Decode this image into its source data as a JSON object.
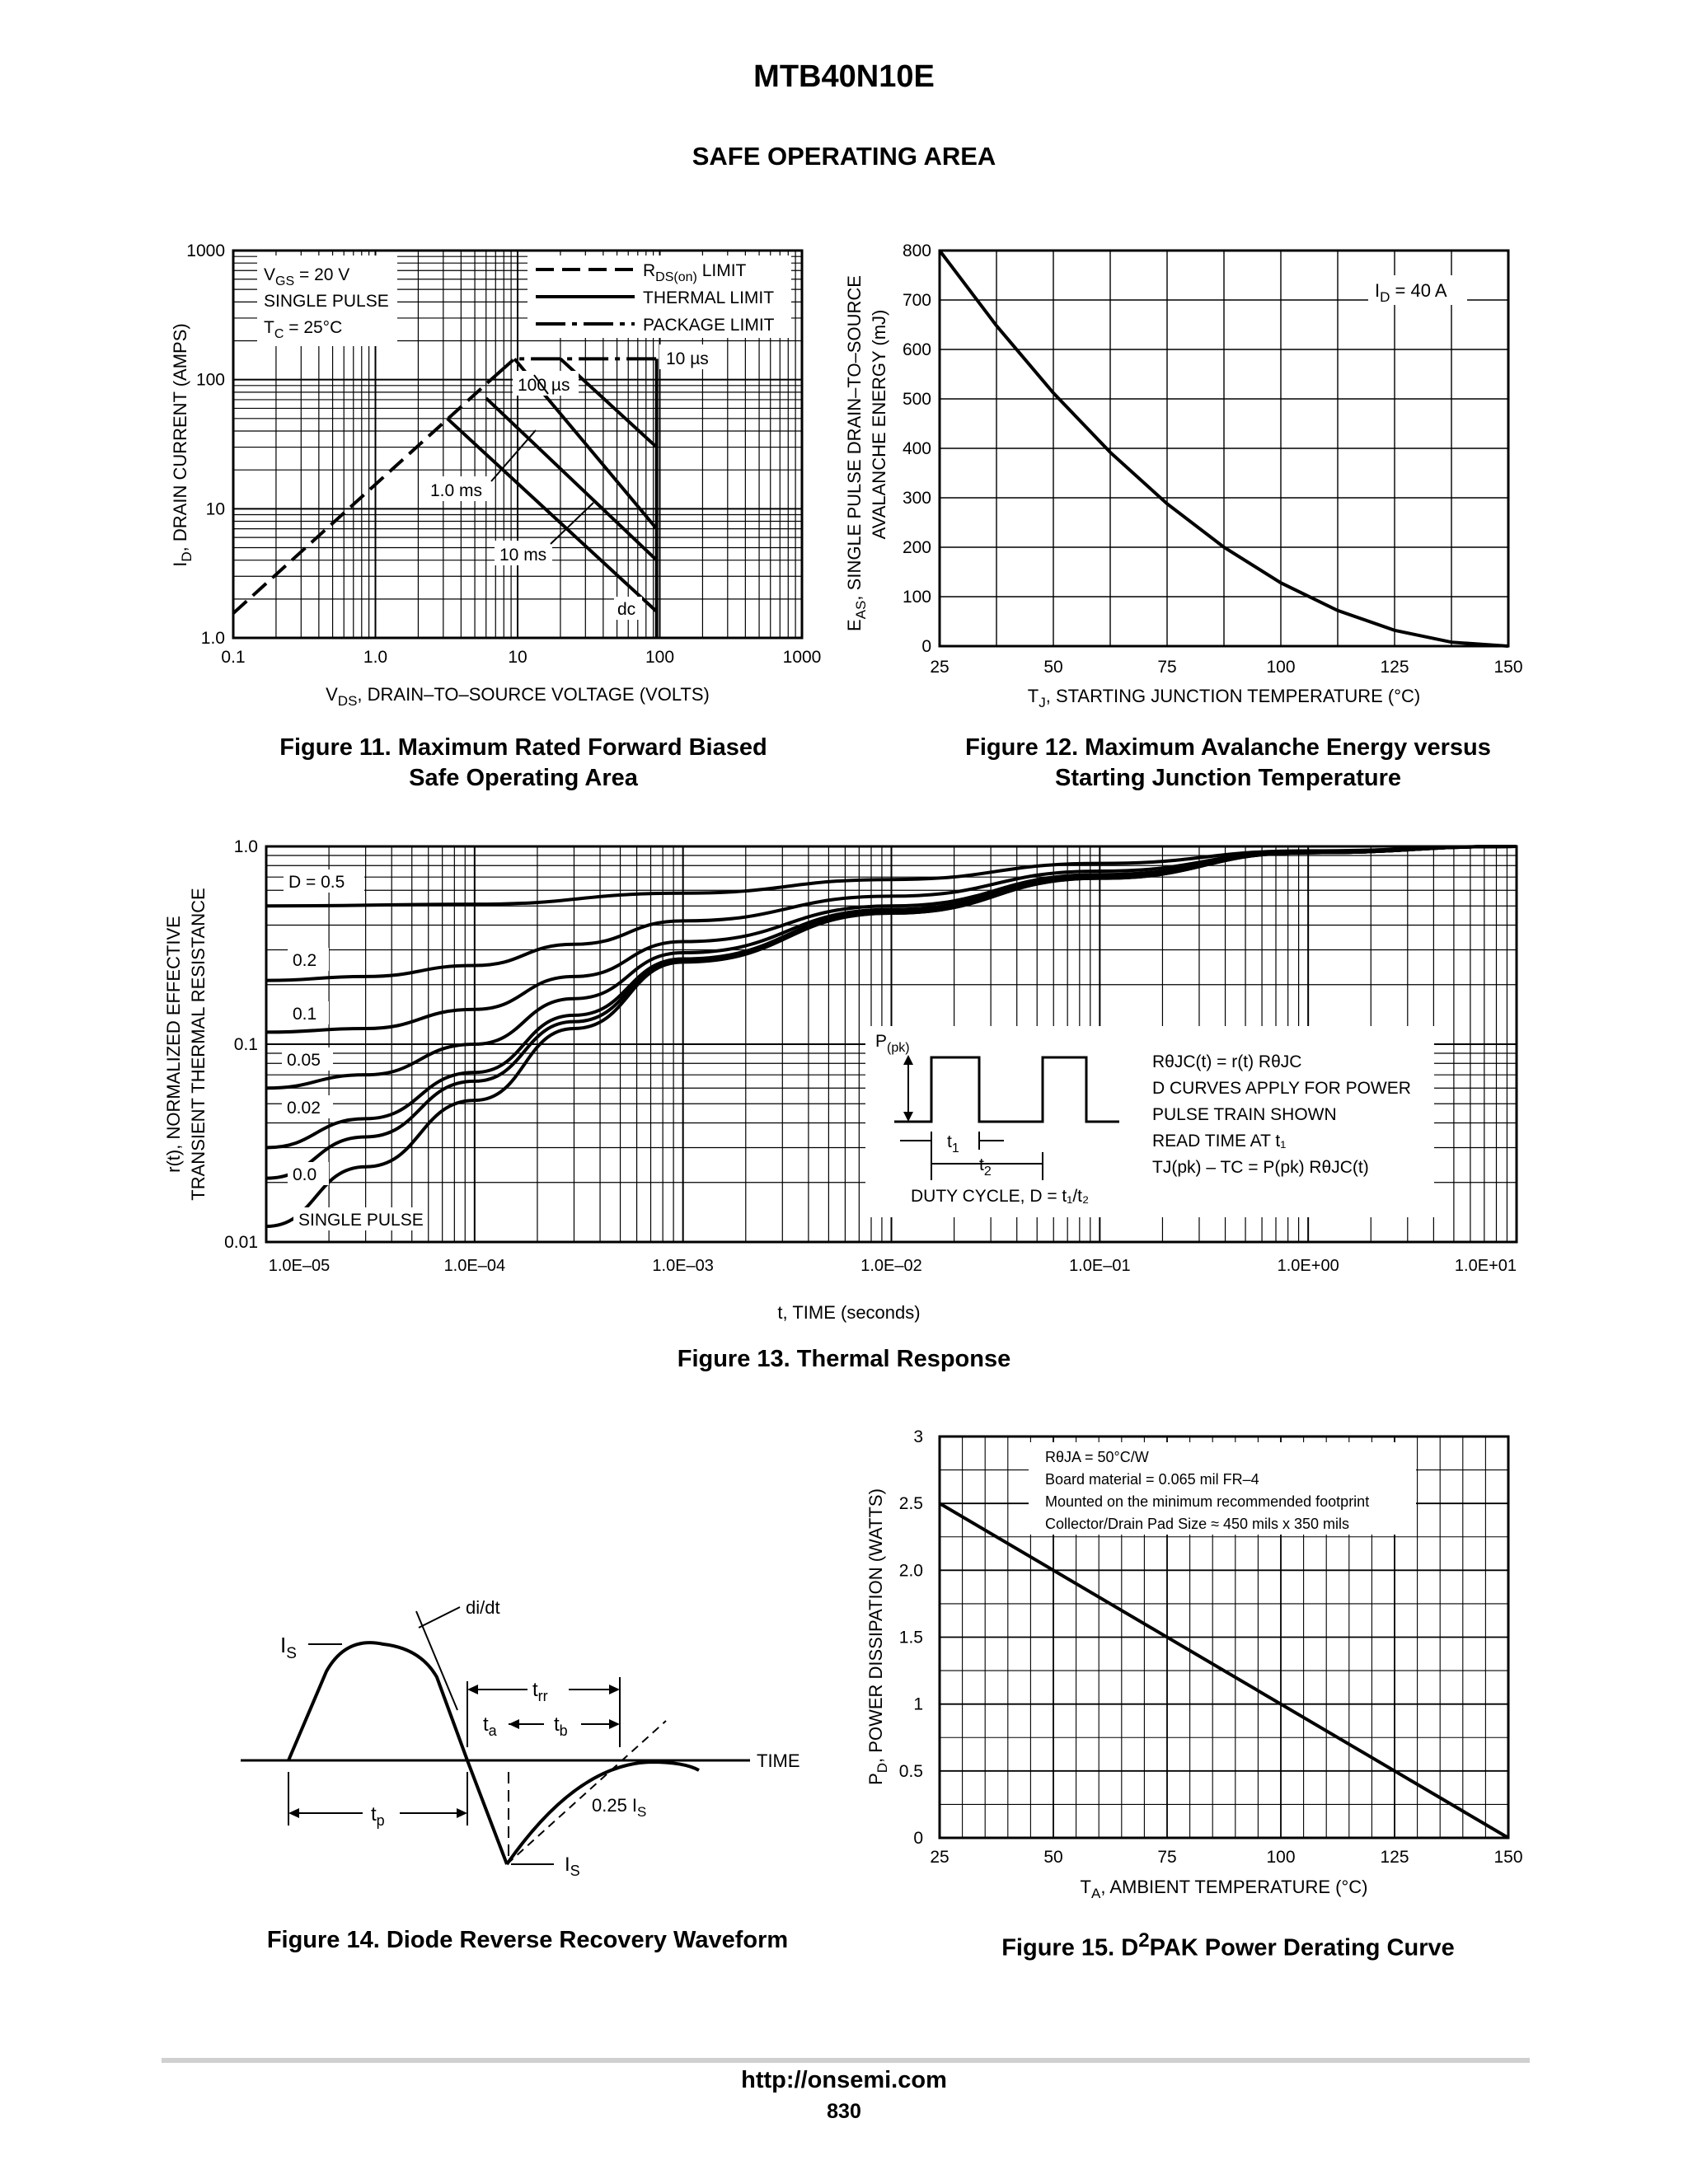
{
  "header": {
    "part_number": "MTB40N10E",
    "section_title": "SAFE OPERATING AREA"
  },
  "figures": {
    "fig11": {
      "caption_line1": "Figure 11. Maximum Rated Forward Biased",
      "caption_line2": "Safe Operating Area",
      "xlabel_main": "V",
      "xlabel_sub": "DS",
      "xlabel_rest": ", DRAIN–TO–SOURCE VOLTAGE (VOLTS)",
      "ylabel_main": "I",
      "ylabel_sub": "D",
      "ylabel_rest": ", DRAIN CURRENT (AMPS)",
      "conditions": [
        "V",
        "GS",
        " = 20 V",
        "SINGLE PULSE",
        "T",
        "C",
        " = 25°C"
      ],
      "legend": [
        {
          "label_main": "R",
          "label_sub": "DS(on)",
          "label_rest": " LIMIT"
        },
        {
          "label_main": "THERMAL LIMIT",
          "label_sub": "",
          "label_rest": ""
        },
        {
          "label_main": "PACKAGE LIMIT",
          "label_sub": "",
          "label_rest": ""
        }
      ],
      "curve_labels": [
        "10 µs",
        "100 µs",
        "1.0 ms",
        "10 ms",
        "dc"
      ]
    },
    "fig12": {
      "caption_line1": "Figure 12. Maximum Avalanche Energy versus",
      "caption_line2": "Starting Junction Temperature",
      "xlabel_main": "T",
      "xlabel_sub": "J",
      "xlabel_rest": ", STARTING JUNCTION TEMPERATURE (°C)",
      "ylabel_line1_main": "E",
      "ylabel_line1_sub": "AS",
      "ylabel_line1_rest": ", SINGLE PULSE DRAIN–TO–SOURCE",
      "ylabel_line2": "AVALANCHE ENERGY (mJ)",
      "annotation_main": "I",
      "annotation_sub": "D",
      "annotation_rest": " = 40 A"
    },
    "fig13": {
      "caption": "Figure 13. Thermal Response",
      "xlabel": "t, TIME (seconds)",
      "ylabel_line1": "r(t), NORMALIZED EFFECTIVE",
      "ylabel_line2": "TRANSIENT THERMAL RESISTANCE",
      "inset_ppk_main": "P",
      "inset_ppk_sub": "(pk)",
      "inset_t1_main": "t",
      "inset_t1_sub": "1",
      "inset_t2_main": "t",
      "inset_t2_sub": "2",
      "inset_duty": "DUTY CYCLE, D = t₁/t₂",
      "inset_notes": [
        "RθJC(t) = r(t) RθJC",
        "D CURVES APPLY FOR POWER",
        "PULSE TRAIN SHOWN",
        "READ TIME AT t₁",
        "TJ(pk) – TC = P(pk) RθJC(t)"
      ]
    },
    "fig14": {
      "caption": "Figure 14. Diode Reverse Recovery Waveform",
      "label_is": "I",
      "label_is_sub": "S",
      "label_didt": "di/dt",
      "label_trr": "t",
      "label_trr_sub": "rr",
      "label_ta": "t",
      "label_ta_sub": "a",
      "label_tb": "t",
      "label_tb_sub": "b",
      "label_tp": "t",
      "label_tp_sub": "p",
      "label_time": "TIME",
      "label_025is": "0.25 I",
      "label_025is_sub": "S",
      "label_is_bottom": "I",
      "label_is_bottom_sub": "S"
    },
    "fig15": {
      "caption_main": "Figure 15. D",
      "caption_sup": "2",
      "caption_rest": "PAK Power Derating Curve",
      "xlabel_main": "T",
      "xlabel_sub": "A",
      "xlabel_rest": ", AMBIENT TEMPERATURE (°C)",
      "ylabel_main": "P",
      "ylabel_sub": "D",
      "ylabel_rest": ", POWER DISSIPATION (WATTS)",
      "notes": [
        "RθJA = 50°C/W",
        "Board material = 0.065 mil FR–4",
        "Mounted on the minimum recommended footprint",
        "Collector/Drain Pad Size ≈ 450 mils x 350 mils"
      ]
    }
  },
  "chart_data": [
    {
      "type": "line",
      "id": "fig11",
      "x_scale": "log",
      "y_scale": "log",
      "xlim": [
        0.1,
        1000
      ],
      "ylim": [
        1.0,
        1000
      ],
      "xticks": [
        "0.1",
        "1.0",
        "10",
        "100",
        "1000"
      ],
      "yticks": [
        "1.0",
        "10",
        "100",
        "1000"
      ],
      "series": [
        {
          "name": "RDS(on) LIMIT",
          "style": "dashed",
          "x": [
            0.1,
            6.5
          ],
          "y": [
            1.55,
            100
          ]
        },
        {
          "name": "PACKAGE LIMIT",
          "style": "dashdot",
          "x": [
            6.5,
            9.5,
            20,
            34,
            95
          ],
          "y": [
            100,
            145,
            145,
            145,
            145
          ]
        },
        {
          "name": "10 µs",
          "style": "solid",
          "x": [
            20,
            95
          ],
          "y": [
            145,
            30
          ]
        },
        {
          "name": "100 µs",
          "style": "solid",
          "x": [
            9.5,
            95
          ],
          "y": [
            145,
            7
          ]
        },
        {
          "name": "1.0 ms",
          "style": "solid",
          "x": [
            6.0,
            95
          ],
          "y": [
            72,
            4
          ]
        },
        {
          "name": "10 ms",
          "style": "solid",
          "x": [
            3.2,
            95
          ],
          "y": [
            50,
            1.6
          ]
        },
        {
          "name": "dc",
          "style": "solid",
          "x": [
            95,
            95
          ],
          "y": [
            145,
            1.0
          ]
        }
      ]
    },
    {
      "type": "line",
      "id": "fig12",
      "xlim": [
        25,
        150
      ],
      "ylim": [
        0,
        800
      ],
      "xticks": [
        "25",
        "50",
        "75",
        "100",
        "125",
        "150"
      ],
      "yticks": [
        "0",
        "100",
        "200",
        "300",
        "400",
        "500",
        "600",
        "700",
        "800"
      ],
      "series": [
        {
          "x": [
            25,
            37.5,
            50,
            62.5,
            75,
            87.5,
            100,
            112.5,
            125,
            137.5,
            150
          ],
          "y": [
            800,
            648,
            512,
            392,
            288,
            200,
            128,
            72,
            32,
            8,
            0
          ]
        }
      ]
    },
    {
      "type": "line",
      "id": "fig13",
      "x_scale": "log",
      "y_scale": "log",
      "xlim": [
        1e-05,
        10
      ],
      "ylim": [
        0.01,
        1.0
      ],
      "xticks": [
        "1.0E–05",
        "1.0E–04",
        "1.0E–03",
        "1.0E–02",
        "1.0E–01",
        "1.0E+00",
        "1.0E+01"
      ],
      "yticks": [
        "0.01",
        "0.1",
        "1.0"
      ],
      "series": [
        {
          "name": "D = 0.5",
          "x": [
            1e-05,
            0.0001,
            0.001,
            0.01,
            0.1,
            1,
            10
          ],
          "y": [
            0.5,
            0.51,
            0.58,
            0.68,
            0.82,
            0.95,
            1.0
          ]
        },
        {
          "name": "0.2",
          "x": [
            1e-05,
            3e-05,
            0.0001,
            0.0003,
            0.001,
            0.01,
            0.1,
            1,
            10
          ],
          "y": [
            0.21,
            0.22,
            0.25,
            0.32,
            0.42,
            0.56,
            0.75,
            0.94,
            1.0
          ]
        },
        {
          "name": "0.1",
          "x": [
            1e-05,
            3e-05,
            0.0001,
            0.0003,
            0.001,
            0.01,
            0.1,
            1,
            10
          ],
          "y": [
            0.115,
            0.12,
            0.15,
            0.22,
            0.33,
            0.5,
            0.72,
            0.93,
            1.0
          ]
        },
        {
          "name": "0.05",
          "x": [
            1e-05,
            3e-05,
            0.0001,
            0.0003,
            0.001,
            0.01,
            0.1,
            1,
            10
          ],
          "y": [
            0.06,
            0.07,
            0.1,
            0.17,
            0.29,
            0.48,
            0.71,
            0.93,
            1.0
          ]
        },
        {
          "name": "0.02",
          "x": [
            1e-05,
            3e-05,
            0.0001,
            0.0003,
            0.001,
            0.01,
            0.1,
            1,
            10
          ],
          "y": [
            0.03,
            0.042,
            0.072,
            0.14,
            0.27,
            0.47,
            0.7,
            0.93,
            1.0
          ]
        },
        {
          "name": "0.0",
          "x": [
            1e-05,
            3e-05,
            0.0001,
            0.0003,
            0.001,
            0.01,
            0.1,
            1,
            10
          ],
          "y": [
            0.021,
            0.034,
            0.065,
            0.13,
            0.265,
            0.46,
            0.69,
            0.93,
            1.0
          ]
        },
        {
          "name": "SINGLE PULSE",
          "x": [
            1e-05,
            3e-05,
            0.0001,
            0.0003,
            0.001,
            0.01,
            0.1,
            1,
            10
          ],
          "y": [
            0.012,
            0.024,
            0.052,
            0.12,
            0.26,
            0.46,
            0.69,
            0.93,
            1.0
          ]
        }
      ]
    },
    {
      "type": "line",
      "id": "fig15",
      "xlim": [
        25,
        150
      ],
      "ylim": [
        0,
        3
      ],
      "xticks": [
        "25",
        "50",
        "75",
        "100",
        "125",
        "150"
      ],
      "yticks": [
        "0",
        "0.5",
        "1",
        "1.5",
        "2.0",
        "2.5",
        "3"
      ],
      "series": [
        {
          "x": [
            25,
            150
          ],
          "y": [
            2.5,
            0
          ]
        }
      ]
    }
  ]
}
